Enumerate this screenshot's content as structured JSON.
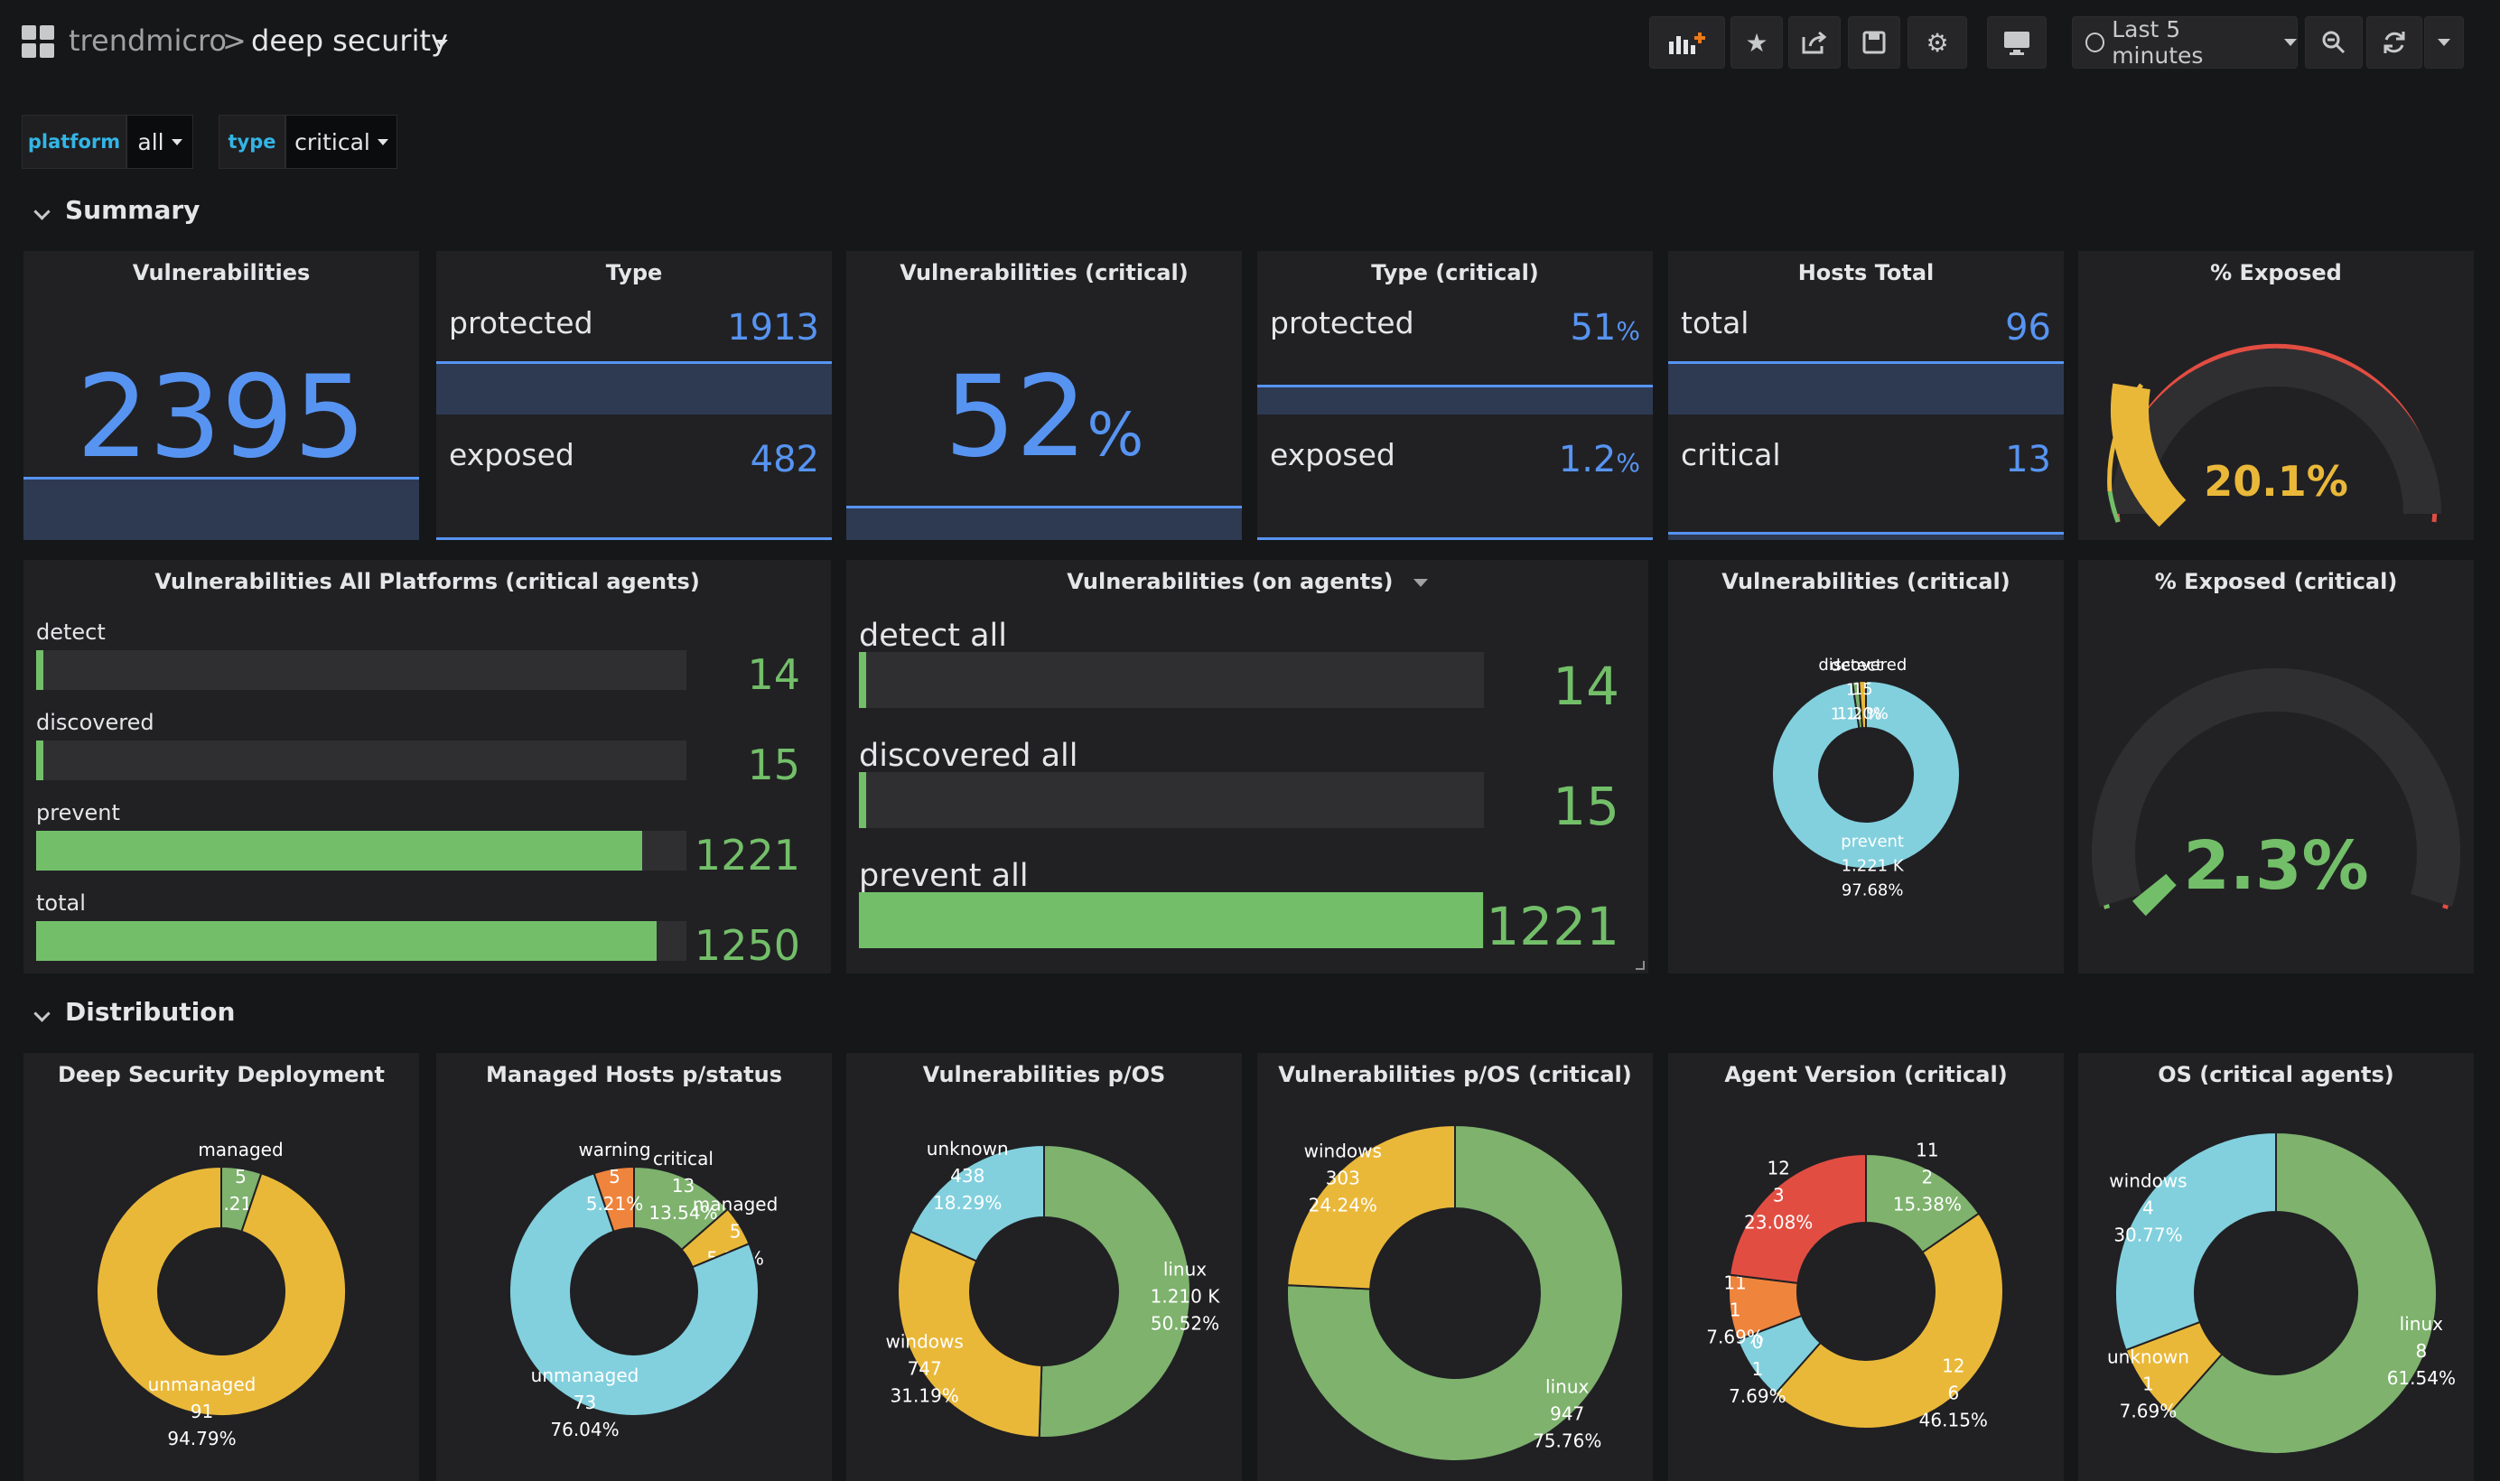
{
  "topbar": {
    "org": "trendmicro",
    "separator": ">",
    "dashboard": "deep security",
    "time_range": "Last 5 minutes"
  },
  "variables": [
    {
      "label": "platform",
      "value": "all"
    },
    {
      "label": "type",
      "value": "critical"
    }
  ],
  "rows": {
    "summary": "Summary",
    "distribution": "Distribution"
  },
  "stat_vulns": {
    "title": "Vulnerabilities",
    "value": "2395"
  },
  "stat_type": {
    "title": "Type",
    "items": [
      {
        "label": "protected",
        "value": "1913"
      },
      {
        "label": "exposed",
        "value": "482"
      }
    ]
  },
  "stat_vulns_crit": {
    "title": "Vulnerabilities (critical)",
    "value": "52",
    "unit": "%"
  },
  "stat_type_crit": {
    "title": "Type (critical)",
    "items": [
      {
        "label": "protected",
        "value": "51",
        "unit": "%"
      },
      {
        "label": "exposed",
        "value": "1.2",
        "unit": "%"
      }
    ]
  },
  "stat_hosts": {
    "title": "Hosts Total",
    "items": [
      {
        "label": "total",
        "value": "96"
      },
      {
        "label": "critical",
        "value": "13"
      }
    ]
  },
  "gauge_exposed": {
    "title": "% Exposed",
    "value": 20.1,
    "display": "20.1%",
    "color": "#eab839"
  },
  "gauge_exposed_crit": {
    "title": "% Exposed (critical)",
    "value": 2.3,
    "display": "2.3%",
    "color": "#73bf69"
  },
  "bargauge_all": {
    "title": "Vulnerabilities All Platforms (critical agents)",
    "max": 1310,
    "items": [
      {
        "label": "detect",
        "value": 14
      },
      {
        "label": "discovered",
        "value": 15
      },
      {
        "label": "prevent",
        "value": 1221
      },
      {
        "label": "total",
        "value": 1250
      }
    ]
  },
  "bargauge_agents": {
    "title": "Vulnerabilities (on agents)",
    "max": 1223,
    "items": [
      {
        "label": "detect all",
        "value": 14
      },
      {
        "label": "discovered all",
        "value": 15
      },
      {
        "label": "prevent all",
        "value": 1221
      }
    ]
  },
  "colors": {
    "blue": "#5794f2",
    "green": "#73bf69",
    "yellow": "#eab839",
    "red": "#e24d42",
    "gauge_track": "#2f2f32"
  },
  "pies": [
    {
      "title": "Vulnerabilities (critical)",
      "slices": [
        {
          "name": "prevent",
          "value": 1221,
          "value_text": "1.221 K",
          "pct": "97.68%",
          "color": "#82d0de"
        },
        {
          "name": "detect",
          "value": 14,
          "value_text": "14",
          "pct": "1.12%",
          "color": "#7eb26d"
        },
        {
          "name": "discovered",
          "value": 15,
          "value_text": "15",
          "pct": "1.20%",
          "color": "#eab839"
        }
      ]
    },
    {
      "title": "Deep Security Deployment",
      "slices": [
        {
          "name": "managed",
          "value": 5,
          "value_text": "5",
          "pct": "5.21%",
          "color": "#7eb26d"
        },
        {
          "name": "unmanaged",
          "value": 91,
          "value_text": "91",
          "pct": "94.79%",
          "color": "#eab839"
        }
      ]
    },
    {
      "title": "Managed Hosts p/status",
      "slices": [
        {
          "name": "critical",
          "value": 13,
          "value_text": "13",
          "pct": "13.54%",
          "color": "#7eb26d"
        },
        {
          "name": "managed",
          "value": 5,
          "value_text": "5",
          "pct": "5.21%",
          "color": "#eab839"
        },
        {
          "name": "unmanaged",
          "value": 73,
          "value_text": "73",
          "pct": "76.04%",
          "color": "#82d0de"
        },
        {
          "name": "warning",
          "value": 5,
          "value_text": "5",
          "pct": "5.21%",
          "color": "#ef843c"
        }
      ]
    },
    {
      "title": "Vulnerabilities p/OS",
      "slices": [
        {
          "name": "linux",
          "value": 1210,
          "value_text": "1.210 K",
          "pct": "50.52%",
          "color": "#7eb26d"
        },
        {
          "name": "windows",
          "value": 747,
          "value_text": "747",
          "pct": "31.19%",
          "color": "#eab839"
        },
        {
          "name": "unknown",
          "value": 438,
          "value_text": "438",
          "pct": "18.29%",
          "color": "#82d0de"
        }
      ]
    },
    {
      "title": "Vulnerabilities p/OS (critical)",
      "slices": [
        {
          "name": "linux",
          "value": 947,
          "value_text": "947",
          "pct": "75.76%",
          "color": "#7eb26d"
        },
        {
          "name": "windows",
          "value": 303,
          "value_text": "303",
          "pct": "24.24%",
          "color": "#eab839"
        }
      ]
    },
    {
      "title": "Agent Version (critical)",
      "slices": [
        {
          "name": "11",
          "value": 2,
          "value_text": "2",
          "pct": "15.38%",
          "color": "#7eb26d"
        },
        {
          "name": "12",
          "value": 6,
          "value_text": "6",
          "pct": "46.15%",
          "color": "#eab839"
        },
        {
          "name": "0",
          "value": 1,
          "value_text": "1",
          "pct": "7.69%",
          "color": "#82d0de"
        },
        {
          "name": "11",
          "value": 1,
          "value_text": "1",
          "pct": "7.69%",
          "color": "#ef843c"
        },
        {
          "name": "12",
          "value": 3,
          "value_text": "3",
          "pct": "23.08%",
          "color": "#e24d42"
        }
      ]
    },
    {
      "title": "OS (critical agents)",
      "slices": [
        {
          "name": "linux",
          "value": 8,
          "value_text": "8",
          "pct": "61.54%",
          "color": "#7eb26d"
        },
        {
          "name": "unknown",
          "value": 1,
          "value_text": "1",
          "pct": "7.69%",
          "color": "#eab839"
        },
        {
          "name": "windows",
          "value": 4,
          "value_text": "4",
          "pct": "30.77%",
          "color": "#82d0de"
        }
      ]
    }
  ]
}
